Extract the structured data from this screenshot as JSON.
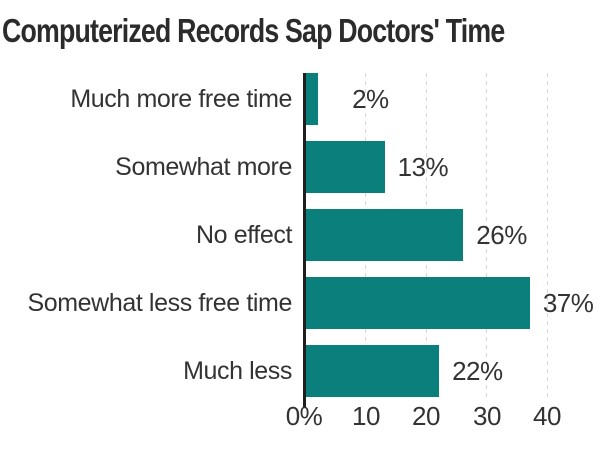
{
  "title": "Computerized Records Sap Doctors' Time",
  "chart_data": {
    "type": "bar",
    "orientation": "horizontal",
    "title": "Computerized Records Sap Doctors' Time",
    "categories": [
      "Much more free time",
      "Somewhat more",
      "No effect",
      "Somewhat less free time",
      "Much less"
    ],
    "values": [
      2,
      13,
      26,
      37,
      22
    ],
    "data_labels": [
      "2%",
      "13%",
      "26%",
      "37%",
      "22%"
    ],
    "x_ticks": [
      "0%",
      "10",
      "20",
      "30",
      "40"
    ],
    "x_tick_values": [
      0,
      10,
      20,
      30,
      40
    ],
    "xlim": [
      0,
      42
    ],
    "unit": "percent",
    "grid": "vertical dashed gridlines at 10, 20, 30, 40",
    "legend": "none"
  },
  "colors": {
    "bar": "#0a7f7b",
    "axis": "#1f1f1f",
    "gridline": "#d8d8d8",
    "text": "#333333",
    "title_text": "#2b2b2b",
    "background": "#ffffff"
  }
}
